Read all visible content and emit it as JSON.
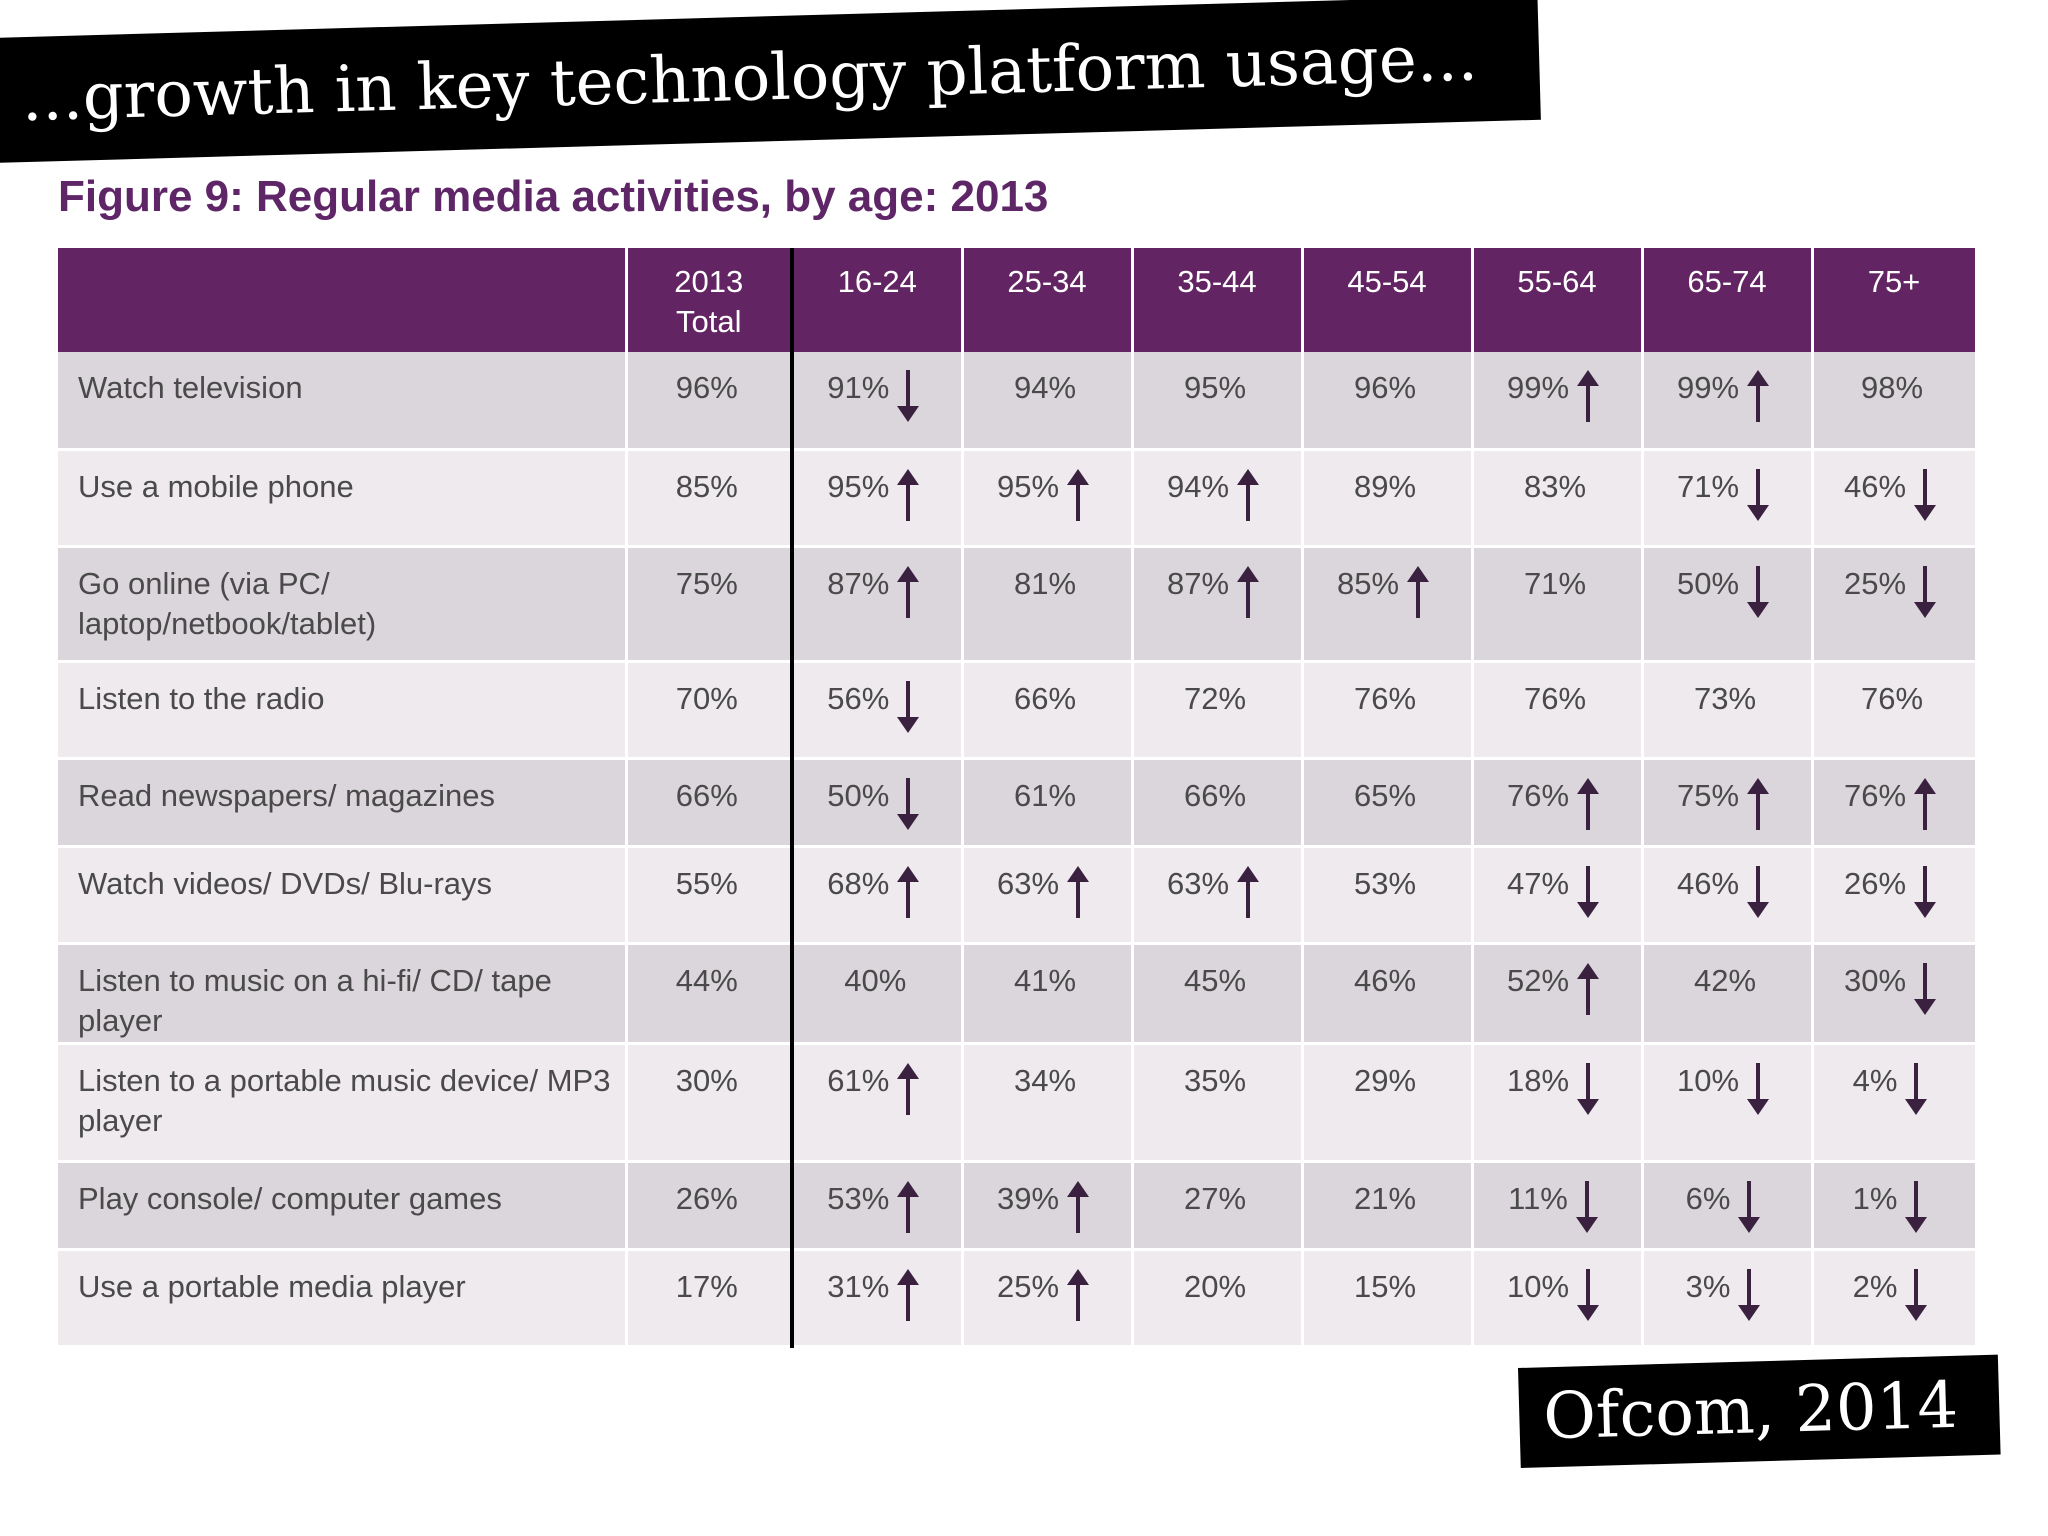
{
  "banner": "...growth in key technology platform usage...",
  "source": "Ofcom, 2014",
  "chart_data": {
    "type": "table",
    "title": "Figure 9: Regular media activities, by age: 2013",
    "columns": [
      "",
      "2013\nTotal",
      "16-24",
      "25-34",
      "35-44",
      "45-54",
      "55-64",
      "65-74",
      "75+"
    ],
    "rows": [
      {
        "label": "Watch television",
        "cells": [
          {
            "v": "96%"
          },
          {
            "v": "91%",
            "a": "down"
          },
          {
            "v": "94%"
          },
          {
            "v": "95%"
          },
          {
            "v": "96%"
          },
          {
            "v": "99%",
            "a": "up"
          },
          {
            "v": "99%",
            "a": "up"
          },
          {
            "v": "98%"
          }
        ]
      },
      {
        "label": "Use a mobile phone",
        "cells": [
          {
            "v": "85%"
          },
          {
            "v": "95%",
            "a": "up"
          },
          {
            "v": "95%",
            "a": "up"
          },
          {
            "v": "94%",
            "a": "up"
          },
          {
            "v": "89%"
          },
          {
            "v": "83%"
          },
          {
            "v": "71%",
            "a": "down"
          },
          {
            "v": "46%",
            "a": "down"
          }
        ]
      },
      {
        "label": "Go online (via PC/ laptop/netbook/tablet)",
        "cells": [
          {
            "v": "75%"
          },
          {
            "v": "87%",
            "a": "up"
          },
          {
            "v": "81%"
          },
          {
            "v": "87%",
            "a": "up"
          },
          {
            "v": "85%",
            "a": "up"
          },
          {
            "v": "71%"
          },
          {
            "v": "50%",
            "a": "down"
          },
          {
            "v": "25%",
            "a": "down"
          }
        ]
      },
      {
        "label": "Listen to the radio",
        "cells": [
          {
            "v": "70%"
          },
          {
            "v": "56%",
            "a": "down"
          },
          {
            "v": "66%"
          },
          {
            "v": "72%"
          },
          {
            "v": "76%"
          },
          {
            "v": "76%"
          },
          {
            "v": "73%"
          },
          {
            "v": "76%"
          }
        ]
      },
      {
        "label": "Read newspapers/ magazines",
        "cells": [
          {
            "v": "66%"
          },
          {
            "v": "50%",
            "a": "down"
          },
          {
            "v": "61%"
          },
          {
            "v": "66%"
          },
          {
            "v": "65%"
          },
          {
            "v": "76%",
            "a": "up"
          },
          {
            "v": "75%",
            "a": "up"
          },
          {
            "v": "76%",
            "a": "up"
          }
        ]
      },
      {
        "label": "Watch videos/ DVDs/ Blu-rays",
        "cells": [
          {
            "v": "55%"
          },
          {
            "v": "68%",
            "a": "up"
          },
          {
            "v": "63%",
            "a": "up"
          },
          {
            "v": "63%",
            "a": "up"
          },
          {
            "v": "53%"
          },
          {
            "v": "47%",
            "a": "down"
          },
          {
            "v": "46%",
            "a": "down"
          },
          {
            "v": "26%",
            "a": "down"
          }
        ]
      },
      {
        "label": "Listen to music on a hi-fi/ CD/ tape player",
        "cells": [
          {
            "v": "44%"
          },
          {
            "v": "40%"
          },
          {
            "v": "41%"
          },
          {
            "v": "45%"
          },
          {
            "v": "46%"
          },
          {
            "v": "52%",
            "a": "up"
          },
          {
            "v": "42%"
          },
          {
            "v": "30%",
            "a": "down"
          }
        ]
      },
      {
        "label": "Listen to a portable music device/ MP3 player",
        "cells": [
          {
            "v": "30%"
          },
          {
            "v": "61%",
            "a": "up"
          },
          {
            "v": "34%"
          },
          {
            "v": "35%"
          },
          {
            "v": "29%"
          },
          {
            "v": "18%",
            "a": "down"
          },
          {
            "v": "10%",
            "a": "down"
          },
          {
            "v": "4%",
            "a": "down"
          }
        ]
      },
      {
        "label": "Play console/ computer games",
        "cells": [
          {
            "v": "26%"
          },
          {
            "v": "53%",
            "a": "up"
          },
          {
            "v": "39%",
            "a": "up"
          },
          {
            "v": "27%"
          },
          {
            "v": "21%"
          },
          {
            "v": "11%",
            "a": "down"
          },
          {
            "v": "6%",
            "a": "down"
          },
          {
            "v": "1%",
            "a": "down"
          }
        ]
      },
      {
        "label": "Use a portable media player",
        "cells": [
          {
            "v": "17%"
          },
          {
            "v": "31%",
            "a": "up"
          },
          {
            "v": "25%",
            "a": "up"
          },
          {
            "v": "20%"
          },
          {
            "v": "15%"
          },
          {
            "v": "10%",
            "a": "down"
          },
          {
            "v": "3%",
            "a": "down"
          },
          {
            "v": "2%",
            "a": "down"
          }
        ]
      }
    ]
  }
}
